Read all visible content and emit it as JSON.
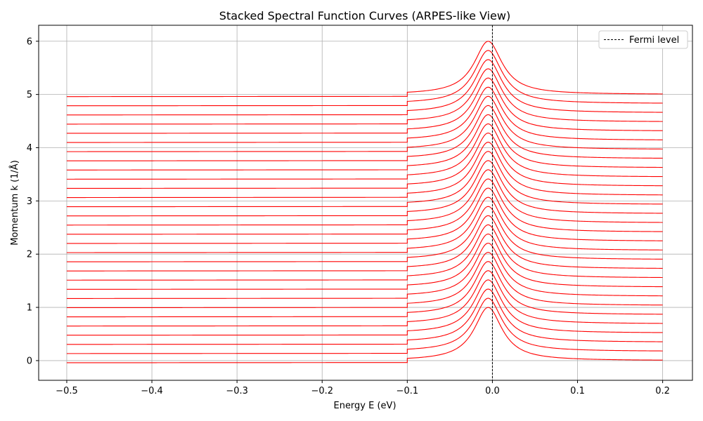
{
  "chart_data": {
    "type": "line",
    "title": "Stacked Spectral Function Curves (ARPES-like View)",
    "xlabel": "Energy E (eV)",
    "ylabel": "Momentum k (1/Å)",
    "xlim": [
      -0.533,
      0.235
    ],
    "ylim": [
      -0.37,
      6.3
    ],
    "xticks": [
      -0.5,
      -0.4,
      -0.3,
      -0.2,
      -0.1,
      0.0,
      0.1,
      0.2
    ],
    "xtick_labels": [
      "−0.5",
      "−0.4",
      "−0.3",
      "−0.2",
      "−0.1",
      "0.0",
      "0.1",
      "0.2"
    ],
    "yticks": [
      0,
      1,
      2,
      3,
      4,
      5,
      6
    ],
    "ytick_labels": [
      "0",
      "1",
      "2",
      "3",
      "4",
      "5",
      "6"
    ],
    "grid": true,
    "series_color": "#ff0000",
    "fermi_level": {
      "x": 0.0,
      "label": "Fermi level",
      "color": "#000000",
      "style": "dashed"
    },
    "legend": {
      "placement": "top-right",
      "entries": [
        "Fermi level"
      ]
    },
    "curves": {
      "count": 30,
      "k_min": 0,
      "k_max": 5,
      "peak_energy": -0.005,
      "peak_height": 1.0,
      "peak_width": 0.02,
      "energy_range": [
        -0.5,
        0.2
      ],
      "step_energy": -0.1,
      "left_level": -0.04,
      "left_step": 0.04
    }
  }
}
